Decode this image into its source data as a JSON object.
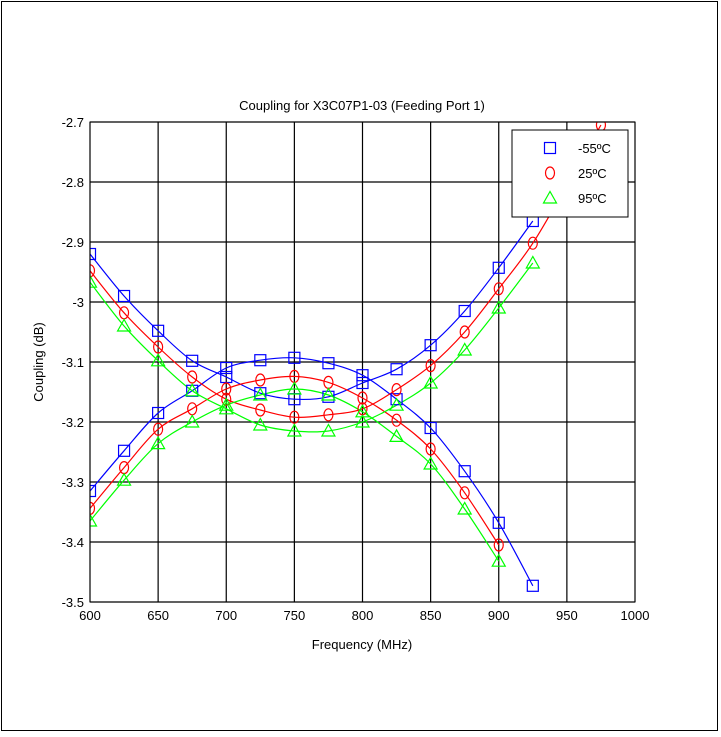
{
  "chart_data": {
    "type": "line",
    "title": "Coupling for X3C07P1-03 (Feeding Port 1)",
    "xlabel": "Frequency (MHz)",
    "ylabel": "Coupling (dB)",
    "xlim": [
      600,
      1000
    ],
    "ylim": [
      -3.5,
      -2.7
    ],
    "xticks": [
      600,
      650,
      700,
      750,
      800,
      850,
      900,
      950,
      1000
    ],
    "yticks": [
      -2.7,
      -2.8,
      -2.9,
      -3,
      -3.1,
      -3.2,
      -3.3,
      -3.4,
      -3.5
    ],
    "grid": true,
    "legend_position": "top-right",
    "series": [
      {
        "name": "-55ºC",
        "color": "#0000ff",
        "marker": "square",
        "trace": "a",
        "x": [
          600,
          625,
          650,
          675,
          700,
          725,
          750,
          775,
          800,
          825,
          850,
          875,
          900,
          925
        ],
        "y": [
          -2.92,
          -2.99,
          -3.048,
          -3.098,
          -3.125,
          -3.152,
          -3.162,
          -3.158,
          -3.135,
          -3.112,
          -3.072,
          -3.015,
          -2.943,
          -2.865
        ]
      },
      {
        "name": "-55ºC",
        "color": "#0000ff",
        "marker": "square",
        "trace": "b",
        "x": [
          600,
          625,
          650,
          675,
          700,
          725,
          750,
          775,
          800,
          825,
          850,
          875,
          900,
          925
        ],
        "y": [
          -3.315,
          -3.248,
          -3.185,
          -3.148,
          -3.11,
          -3.097,
          -3.093,
          -3.102,
          -3.122,
          -3.162,
          -3.21,
          -3.282,
          -3.368,
          -3.473
        ]
      },
      {
        "name": "25ºC",
        "color": "#ff0000",
        "marker": "circle",
        "trace": "a",
        "x": [
          600,
          625,
          650,
          675,
          700,
          725,
          750,
          775,
          800,
          825,
          850,
          875,
          900,
          925,
          950,
          975
        ],
        "y": [
          -2.948,
          -3.018,
          -3.075,
          -3.125,
          -3.162,
          -3.18,
          -3.192,
          -3.188,
          -3.178,
          -3.146,
          -3.106,
          -3.05,
          -2.978,
          -2.902,
          -2.805,
          -2.705
        ]
      },
      {
        "name": "25ºC",
        "color": "#ff0000",
        "marker": "circle",
        "trace": "b",
        "x": [
          600,
          625,
          650,
          675,
          700,
          725,
          750,
          775,
          800,
          825,
          850,
          875,
          900
        ],
        "y": [
          -3.344,
          -3.276,
          -3.212,
          -3.178,
          -3.145,
          -3.13,
          -3.124,
          -3.134,
          -3.16,
          -3.197,
          -3.245,
          -3.318,
          -3.405
        ]
      },
      {
        "name": "95ºC",
        "color": "#00ff00",
        "marker": "triangle",
        "trace": "a",
        "x": [
          600,
          625,
          650,
          675,
          700,
          725,
          750,
          775,
          800,
          825,
          850,
          875,
          900,
          925
        ],
        "y": [
          -2.967,
          -3.04,
          -3.098,
          -3.148,
          -3.178,
          -3.205,
          -3.215,
          -3.215,
          -3.2,
          -3.172,
          -3.135,
          -3.08,
          -3.01,
          -2.935
        ]
      },
      {
        "name": "95ºC",
        "color": "#00ff00",
        "marker": "triangle",
        "trace": "b",
        "x": [
          600,
          625,
          650,
          675,
          700,
          725,
          750,
          775,
          800,
          825,
          850,
          875,
          900
        ],
        "y": [
          -3.365,
          -3.297,
          -3.236,
          -3.2,
          -3.172,
          -3.155,
          -3.145,
          -3.155,
          -3.183,
          -3.224,
          -3.27,
          -3.345,
          -3.432
        ]
      }
    ]
  }
}
